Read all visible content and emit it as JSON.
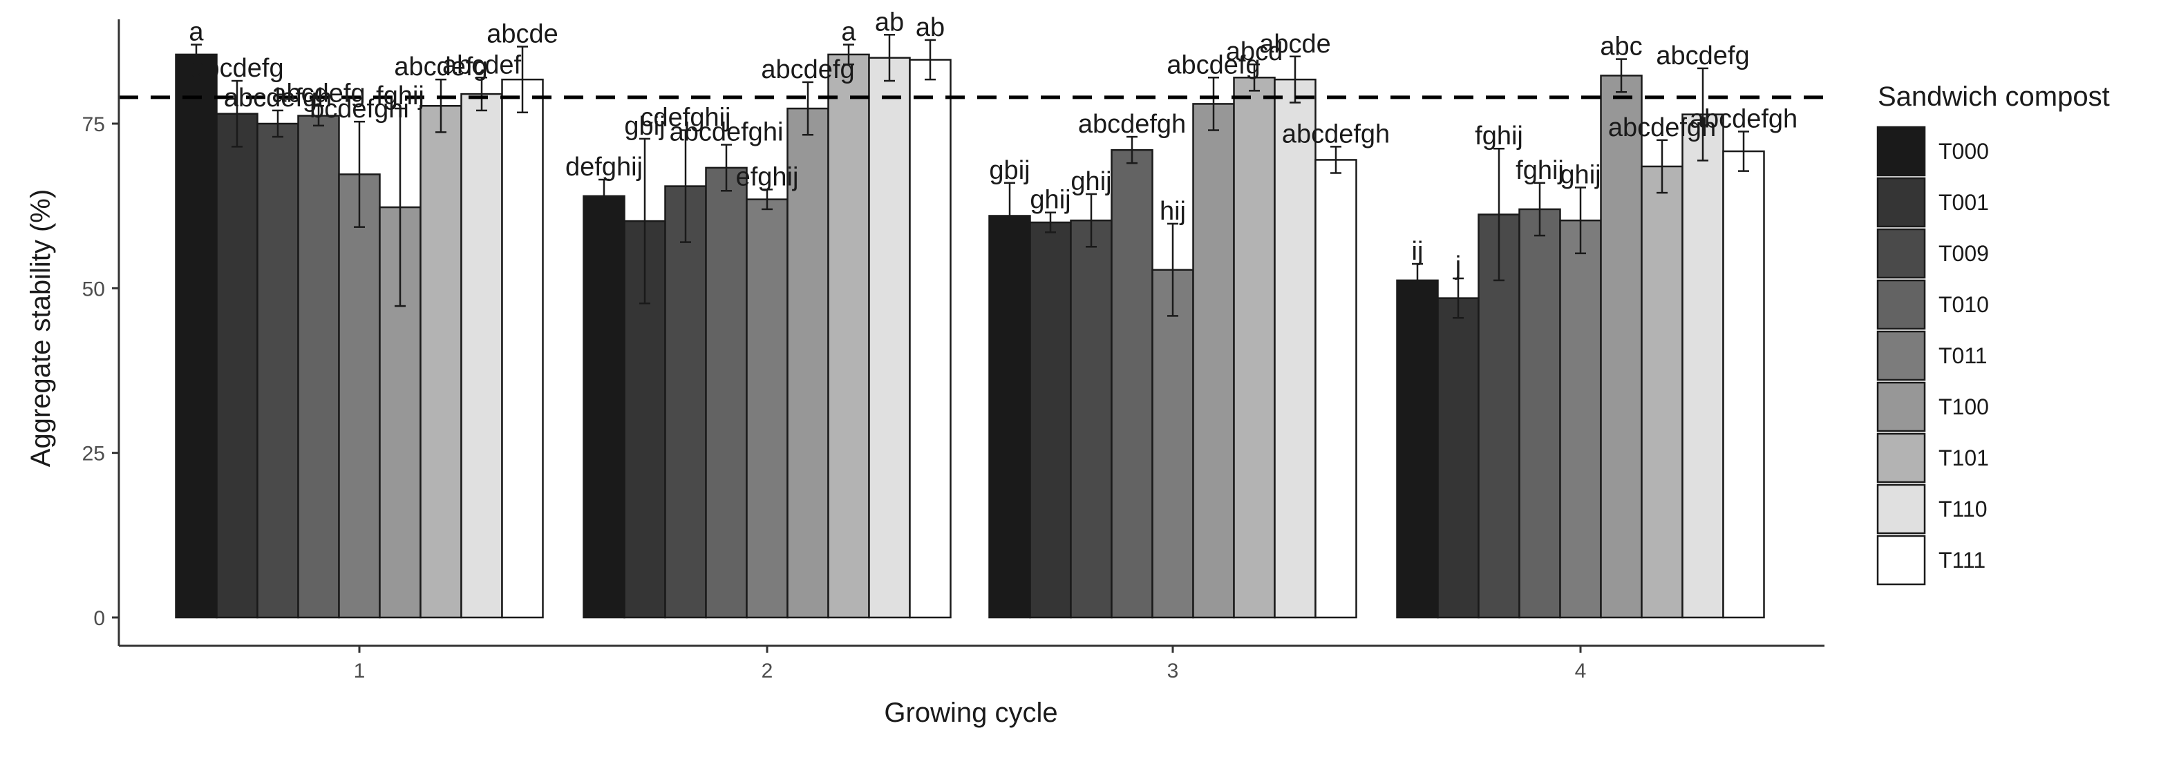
{
  "chart_data": {
    "type": "bar",
    "xlabel": "Growing cycle",
    "ylabel": "Aggregate stability (%)",
    "categories": [
      "1",
      "2",
      "3",
      "4"
    ],
    "ylim": [
      0,
      90
    ],
    "yticks": [
      0,
      25,
      50,
      75
    ],
    "reference_line": 79,
    "grid": false,
    "legend": {
      "title": "Sandwich compost",
      "position": "right"
    },
    "series": [
      {
        "name": "T000",
        "color": "#1a1a1a",
        "values": [
          85.5,
          64,
          61,
          51.2
        ],
        "errors": [
          1.5,
          2.5,
          5,
          2.5
        ],
        "labels": [
          "a",
          "defghij",
          "gbij",
          "ij"
        ]
      },
      {
        "name": "T001",
        "color": "#353535",
        "values": [
          76.5,
          60.2,
          60,
          48.5
        ],
        "errors": [
          5,
          12.5,
          1.5,
          3
        ],
        "labels": [
          "abcdefg",
          "gbij",
          "ghij",
          "j"
        ]
      },
      {
        "name": "T009",
        "color": "#4a4a4a",
        "values": [
          75,
          65.5,
          60.3,
          61.2
        ],
        "errors": [
          2,
          8.5,
          4,
          10
        ],
        "labels": [
          "abcdefgh",
          "cdefghij",
          "ghij",
          "fghij"
        ]
      },
      {
        "name": "T010",
        "color": "#636363",
        "values": [
          76.2,
          68.3,
          71,
          62
        ],
        "errors": [
          1.5,
          3.5,
          2,
          4
        ],
        "labels": [
          "abcdefg",
          "abcdefghi",
          "abcdefgh",
          "fghij"
        ]
      },
      {
        "name": "T011",
        "color": "#7c7c7c",
        "values": [
          67.3,
          63.5,
          52.8,
          60.3
        ],
        "errors": [
          8,
          1.5,
          7,
          5
        ],
        "labels": [
          "bcdefghi",
          "efghij",
          "hij",
          "ghij"
        ]
      },
      {
        "name": "T100",
        "color": "#979797",
        "values": [
          62.3,
          77.3,
          78,
          82.3
        ],
        "errors": [
          15,
          4,
          4,
          2.5
        ],
        "labels": [
          "fghij",
          "abcdefg",
          "abcdefg",
          "abc"
        ]
      },
      {
        "name": "T101",
        "color": "#b3b3b3",
        "values": [
          77.7,
          85.5,
          82,
          68.5
        ],
        "errors": [
          4,
          1.5,
          2,
          4
        ],
        "labels": [
          "abcdefg",
          "a",
          "abcd",
          "abcdefgh"
        ]
      },
      {
        "name": "T110",
        "color": "#e0e0e0",
        "values": [
          79.5,
          85,
          81.7,
          76.4
        ],
        "errors": [
          2.5,
          3.5,
          3.5,
          7
        ],
        "labels": [
          "abcdef",
          "ab",
          "abcde",
          "abcdefg"
        ]
      },
      {
        "name": "T111",
        "color": "#ffffff",
        "values": [
          81.7,
          84.7,
          69.5,
          70.8
        ],
        "errors": [
          5,
          3,
          2,
          3
        ],
        "labels": [
          "abcde",
          "ab",
          "abcdefgh",
          "abcdefgh"
        ]
      }
    ]
  }
}
